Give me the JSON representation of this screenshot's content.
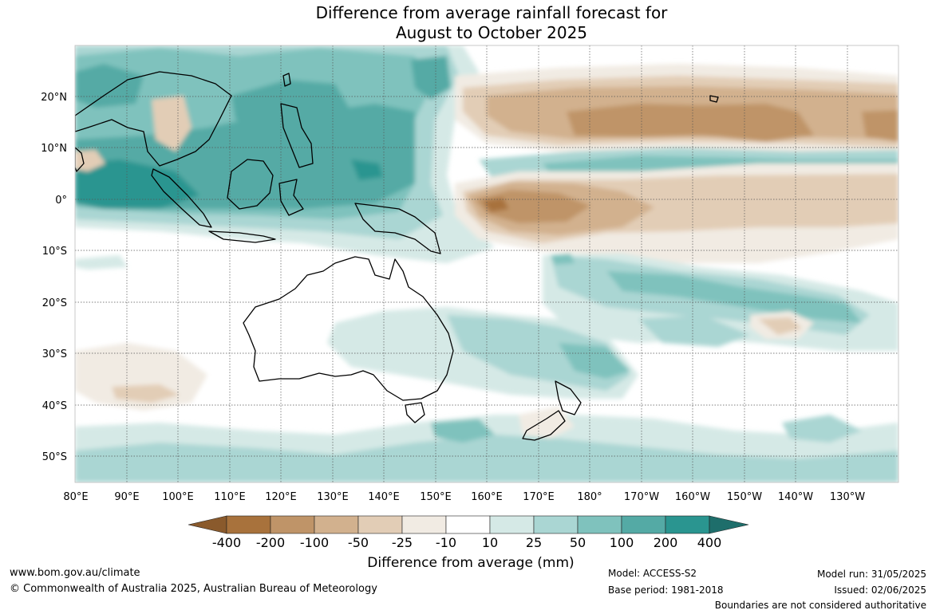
{
  "header": {
    "title_line1": "Difference from average rainfall forecast for",
    "title_line2": "August to October 2025"
  },
  "map": {
    "lat_labels": [
      "20°N",
      "10°N",
      "0°",
      "10°S",
      "20°S",
      "30°S",
      "40°S",
      "50°S"
    ],
    "lon_labels": [
      "80°E",
      "90°E",
      "100°E",
      "110°E",
      "120°E",
      "130°E",
      "140°E",
      "150°E",
      "160°E",
      "170°E",
      "180°",
      "170°W",
      "160°W",
      "150°W",
      "140°W",
      "130°W"
    ],
    "colors": {
      "dry_400": "#a8723c",
      "dry_200": "#bf9468",
      "dry_100": "#d2b18e",
      "dry_50": "#e2cdb6",
      "dry_25": "#f1ebe3",
      "neutral": "#ffffff",
      "wet_25": "#d5e9e6",
      "wet_50": "#aad6d3",
      "wet_100": "#7fc2bd",
      "wet_200": "#54aaa5",
      "wet_400": "#2a9590",
      "wet_extreme": "#1e6e6b"
    }
  },
  "colorbar": {
    "ticks": [
      "-400",
      "-200",
      "-100",
      "-50",
      "-25",
      "-10",
      "10",
      "25",
      "50",
      "100",
      "200",
      "400"
    ],
    "title": "Difference from average (mm)"
  },
  "footer": {
    "website": "www.bom.gov.au/climate",
    "copyright": "© Commonwealth of Australia 2025, Australian Bureau of Meteorology",
    "model": "Model: ACCESS-S2",
    "base_period": "Base period: 1981-2018",
    "model_run": "Model run: 31/05/2025",
    "issued": "Issued: 02/06/2025",
    "disclaimer": "Boundaries are not considered authoritative"
  }
}
